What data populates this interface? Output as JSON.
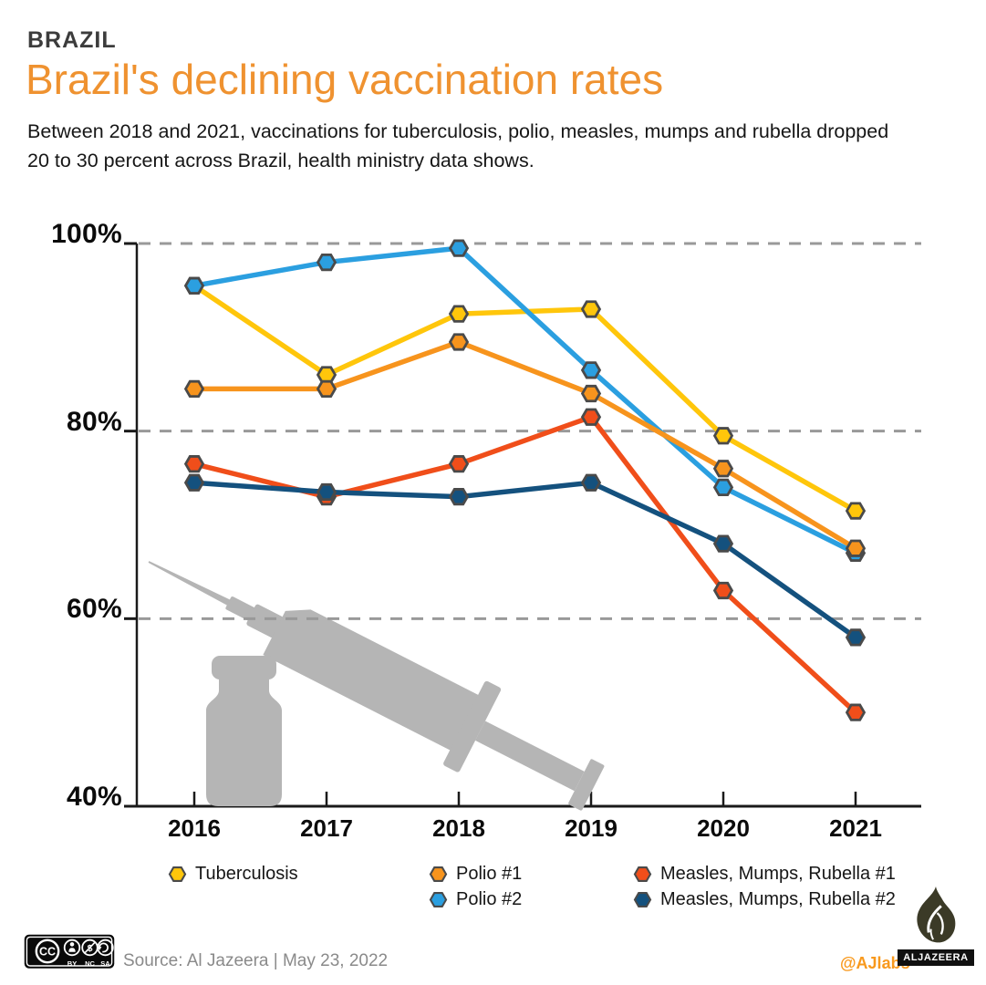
{
  "header": {
    "kicker": "BRAZIL",
    "title": "Brazil's declining vaccination rates",
    "subtitle": "Between 2018 and 2021, vaccinations for tuberculosis, polio, measles, mumps and rubella dropped 20 to 30 percent across Brazil, health ministry data shows."
  },
  "chart_data": {
    "type": "line",
    "categories": [
      "2016",
      "2017",
      "2018",
      "2019",
      "2020",
      "2021"
    ],
    "series": [
      {
        "name": "Tuberculosis",
        "color": "#FFC60B",
        "values": [
          95.5,
          86,
          92.5,
          93,
          79.5,
          71.5
        ]
      },
      {
        "name": "Polio #2",
        "color": "#2B9FE0",
        "values": [
          95.5,
          98,
          99.5,
          86.5,
          74,
          67
        ]
      },
      {
        "name": "Polio #1",
        "color": "#F7941D",
        "values": [
          84.5,
          84.5,
          89.5,
          84,
          76,
          67.5
        ]
      },
      {
        "name": "Measles, Mumps, Rubella #1",
        "color": "#F04E1A",
        "values": [
          76.5,
          73,
          76.5,
          81.5,
          63,
          50
        ]
      },
      {
        "name": "Measles, Mumps, Rubella #2",
        "color": "#14517E",
        "values": [
          74.5,
          73.5,
          73,
          74.5,
          68,
          58
        ]
      }
    ],
    "ylim": [
      40,
      100
    ],
    "ytick_values": [
      100,
      80,
      60,
      40
    ],
    "ytick_labels": [
      "100%",
      "80%",
      "60%",
      "40%"
    ],
    "xlabel": "",
    "ylabel": "",
    "grid": "dashed-horizontal",
    "legend_position": "bottom",
    "marker": "hexagon"
  },
  "footer": {
    "source": "Source: Al Jazeera | May 23, 2022",
    "credit": "@AJlabs",
    "logo_text": "ALJAZEERA",
    "license": {
      "cc": "CC",
      "by": "BY",
      "nc": "NC",
      "sa": "SA",
      "nc_symbol": "$"
    }
  },
  "colors": {
    "title": "#EF9230",
    "kicker": "#3C3C3C",
    "axis": "#1A1A1A",
    "grid": "#999999",
    "marker_stroke": "#4A4A4A",
    "illustration": "#B5B5B5",
    "credit": "#F8991D"
  }
}
